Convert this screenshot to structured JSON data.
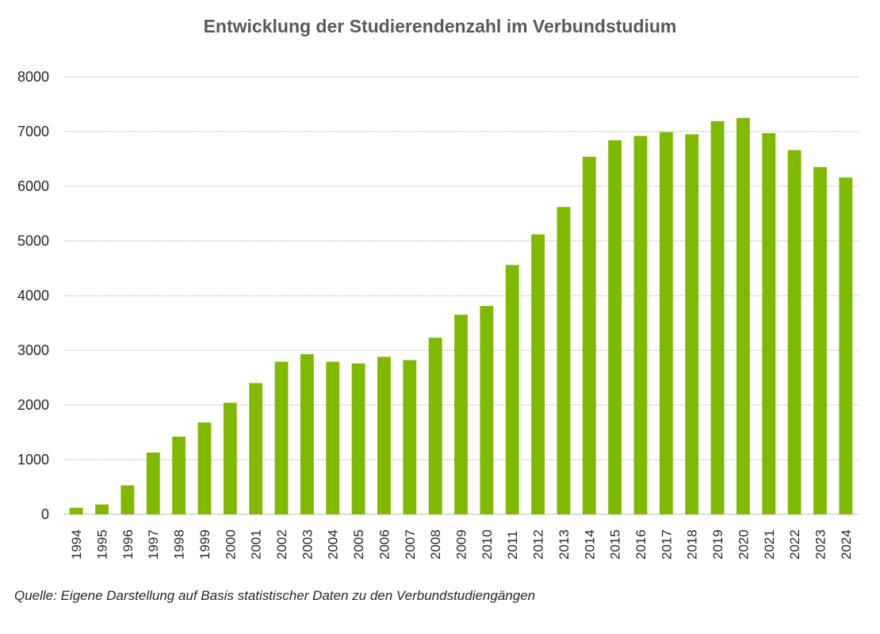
{
  "chart_data": {
    "type": "bar",
    "title": "Entwicklung der Studierendenzahl im Verbundstudium",
    "xlabel": "",
    "ylabel": "",
    "ylim": [
      0,
      8000
    ],
    "yticks": [
      "0",
      "1000",
      "2000",
      "3000",
      "4000",
      "5000",
      "6000",
      "7000",
      "8000"
    ],
    "grid": true,
    "bar_color": "#7fba00",
    "categories": [
      "1994",
      "1995",
      "1996",
      "1997",
      "1998",
      "1999",
      "2000",
      "2001",
      "2002",
      "2003",
      "2004",
      "2005",
      "2006",
      "2007",
      "2008",
      "2009",
      "2010",
      "2011",
      "2012",
      "2013",
      "2014",
      "2015",
      "2016",
      "2017",
      "2018",
      "2019",
      "2020",
      "2021",
      "2022",
      "2023",
      "2024"
    ],
    "values": [
      120,
      180,
      530,
      1130,
      1420,
      1680,
      2040,
      2400,
      2790,
      2930,
      2790,
      2760,
      2880,
      2820,
      3230,
      3650,
      3810,
      4560,
      5120,
      5620,
      6540,
      6840,
      6920,
      6990,
      6950,
      7190,
      7250,
      6970,
      6660,
      6350,
      6160
    ]
  },
  "source": "Quelle: Eigene Darstellung auf Basis statistischer Daten zu den Verbundstudiengängen"
}
